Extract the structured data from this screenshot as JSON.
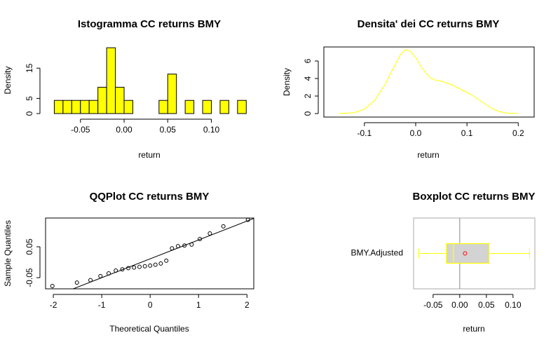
{
  "chart_data": [
    {
      "type": "histogram",
      "title": "Istogramma CC returns BMY",
      "x_label": "return",
      "y_label": "Density",
      "bins": [
        -0.08,
        -0.07,
        -0.06,
        -0.05,
        -0.04,
        -0.03,
        -0.02,
        -0.01,
        0,
        0.01,
        0.02,
        0.03,
        0.04,
        0.05,
        0.06,
        0.07,
        0.08,
        0.09,
        0.1,
        0.11,
        0.12,
        0.13,
        0.14
      ],
      "values": [
        4.35,
        4.35,
        4.35,
        4.35,
        4.35,
        8.7,
        21.74,
        8.7,
        4.35,
        0,
        0,
        0,
        4.35,
        13.04,
        0,
        4.35,
        0,
        4.35,
        0,
        4.35,
        0,
        4.35
      ],
      "color": "#ffff00",
      "xlim": [
        -0.09,
        0.147
      ],
      "ylim": [
        0,
        22
      ],
      "xticks": [
        -0.05,
        {
          "value": 0,
          "label": "0.00"
        },
        0.05,
        {
          "value": 0.1,
          "label": "0.10"
        }
      ],
      "yticks": [
        0,
        5,
        15
      ],
      "grid": false
    },
    {
      "type": "line",
      "title": "Densita' dei CC returns BMY",
      "x_label": "return",
      "y_label": "Density",
      "x": [
        -0.15,
        -0.12,
        -0.1,
        -0.08,
        -0.06,
        -0.04,
        -0.03,
        -0.02,
        -0.01,
        0,
        0.01,
        0.02,
        0.03,
        0.04,
        0.05,
        0.06,
        0.07,
        0.08,
        0.09,
        0.1,
        0.11,
        0.12,
        0.13,
        0.14,
        0.15,
        0.16,
        0.17,
        0.18,
        0.2
      ],
      "values": [
        0,
        0.1,
        0.5,
        1.5,
        3.3,
        5.6,
        6.7,
        7.3,
        7.1,
        6.4,
        5.4,
        4.6,
        4.0,
        3.8,
        3.7,
        3.5,
        3.3,
        3.0,
        2.7,
        2.4,
        2.1,
        1.7,
        1.3,
        0.9,
        0.55,
        0.3,
        0.12,
        0.05,
        0
      ],
      "color": "#ffff00",
      "xlim": [
        -0.179,
        0.231
      ],
      "ylim": [
        -0.4,
        7.6
      ],
      "xticks": [
        -0.1,
        {
          "value": 0,
          "label": "0.0"
        },
        0.1,
        0.2
      ],
      "yticks": [
        0,
        2,
        4,
        6
      ],
      "grid": false
    },
    {
      "type": "qq",
      "title": "QQPlot CC returns BMY",
      "x_label": "Theoretical Quantiles",
      "y_label": "Sample Quantiles",
      "x": [
        -2.019,
        -1.512,
        -1.233,
        -1.027,
        -0.857,
        -0.709,
        -0.575,
        -0.451,
        -0.333,
        -0.22,
        -0.109,
        0,
        0.109,
        0.22,
        0.333,
        0.451,
        0.575,
        0.709,
        0.857,
        1.027,
        1.233,
        1.512,
        2.019
      ],
      "values": [
        -0.077,
        -0.066,
        -0.058,
        -0.045,
        -0.036,
        -0.027,
        -0.023,
        -0.019,
        -0.017,
        -0.015,
        -0.013,
        -0.011,
        -0.008,
        -0.004,
        0.005,
        0.045,
        0.052,
        0.054,
        0.057,
        0.075,
        0.093,
        0.116,
        0.137
      ],
      "qqline": {
        "intercept": 0.011,
        "slope": 0.061
      },
      "color": "#000000",
      "xlim": [
        -2.16,
        2.14
      ],
      "ylim": [
        -0.086,
        0.143
      ],
      "xticks": [
        -2,
        -1,
        0,
        1,
        2
      ],
      "yticks": [
        -0.05,
        0.05
      ],
      "grid": false
    },
    {
      "type": "boxplot",
      "title": "Boxplot CC returns BMY",
      "x_label": "return",
      "boxes": [
        {
          "name": "BMY.Adjusted",
          "low": -0.077,
          "q1": -0.025,
          "median": -0.012,
          "q3": 0.055,
          "high": 0.131,
          "mean": 0.01
        }
      ],
      "color": "#ffff00",
      "fill": "#d3d3d3",
      "mean_color": "#ff0000",
      "xlim": [
        -0.0866,
        0.141
      ],
      "xticks": [
        -0.05,
        {
          "value": 0,
          "label": "0.00"
        },
        0.05,
        {
          "value": 0.1,
          "label": "0.10"
        }
      ],
      "grid": false
    }
  ]
}
